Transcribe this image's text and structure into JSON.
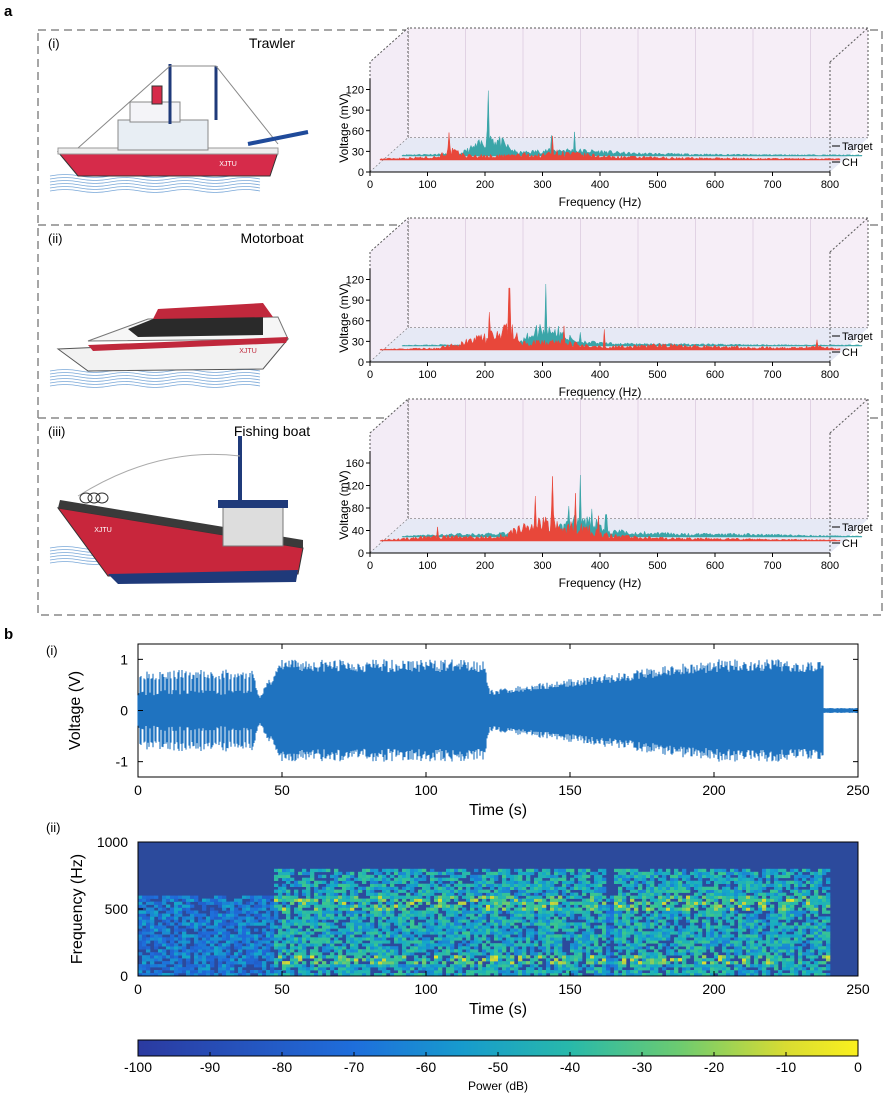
{
  "panel_a": {
    "letter": "a",
    "rows": [
      {
        "tag": "(i)",
        "name": "Trawler",
        "hull_color": "#d62b4a",
        "boat_label": "XJTU",
        "ylabel": "Voltage (mV)",
        "yticks": [
          "0",
          "30",
          "60",
          "90",
          "120"
        ],
        "ymax": 120
      },
      {
        "tag": "(ii)",
        "name": "Motorboat",
        "hull_color": "#c0283c",
        "boat_label": "XJTU",
        "ylabel": "Voltage (mV)",
        "yticks": [
          "0",
          "30",
          "60",
          "90",
          "120"
        ],
        "ymax": 120
      },
      {
        "tag": "(iii)",
        "name": "Fishing boat",
        "hull_color": "#c8263c",
        "boat_label": "XJTU",
        "ylabel": "Voltage (mV)",
        "yticks": [
          "0",
          "40",
          "80",
          "120",
          "160"
        ],
        "ymax": 160
      }
    ],
    "xticks": [
      "0",
      "100",
      "200",
      "300",
      "400",
      "500",
      "600",
      "700",
      "800"
    ],
    "xlabel": "Frequency (Hz)",
    "series_labels": {
      "target": "Target",
      "ch": "CH"
    },
    "colors": {
      "target": "#3aa5a8",
      "ch": "#e8473a"
    }
  },
  "panel_b": {
    "letter": "b",
    "sub_i": "(i)",
    "sub_ii": "(ii)",
    "waveform": {
      "ylabel": "Voltage (V)",
      "yticks": [
        "-1",
        "0",
        "1"
      ],
      "xlabel": "Time (s)",
      "xticks": [
        "0",
        "50",
        "100",
        "150",
        "200",
        "250"
      ],
      "color": "#1f73c0"
    },
    "spectrogram": {
      "ylabel": "Frequency (Hz)",
      "yticks": [
        "0",
        "500",
        "1000"
      ],
      "xlabel": "Time (s)",
      "xticks": [
        "0",
        "50",
        "100",
        "150",
        "200",
        "250"
      ]
    },
    "colorbar": {
      "label": "Power (dB)",
      "ticks": [
        "-100",
        "-90",
        "-80",
        "-70",
        "-60",
        "-50",
        "-40",
        "-30",
        "-20",
        "-10",
        "0"
      ]
    }
  },
  "chart_data": [
    {
      "type": "line",
      "title": "Trawler",
      "xlabel": "Frequency (Hz)",
      "ylabel": "Voltage (mV)",
      "xlim": [
        0,
        800
      ],
      "ylim": [
        0,
        120
      ],
      "series": [
        {
          "name": "Target",
          "x": [
            0,
            100,
            140,
            150,
            200,
            250,
            280,
            300,
            350,
            400,
            500,
            600,
            700,
            800
          ],
          "values": [
            5,
            10,
            60,
            100,
            15,
            25,
            28,
            26,
            20,
            12,
            8,
            6,
            5,
            4
          ]
        },
        {
          "name": "CH",
          "x": [
            0,
            100,
            120,
            150,
            200,
            250,
            280,
            300,
            350,
            400,
            500,
            600,
            700,
            800
          ],
          "values": [
            5,
            15,
            45,
            20,
            18,
            25,
            20,
            35,
            25,
            15,
            10,
            8,
            6,
            5
          ]
        }
      ]
    },
    {
      "type": "line",
      "title": "Motorboat",
      "xlabel": "Frequency (Hz)",
      "ylabel": "Voltage (mV)",
      "xlim": [
        0,
        800
      ],
      "ylim": [
        0,
        120
      ],
      "series": [
        {
          "name": "Target",
          "x": [
            0,
            100,
            150,
            200,
            250,
            300,
            350,
            400,
            500,
            600,
            700,
            800
          ],
          "values": [
            3,
            6,
            10,
            15,
            95,
            25,
            12,
            10,
            8,
            6,
            4,
            4
          ]
        },
        {
          "name": "CH",
          "x": [
            0,
            100,
            190,
            225,
            250,
            300,
            320,
            350,
            400,
            500,
            600,
            700,
            760,
            800
          ],
          "values": [
            3,
            8,
            60,
            95,
            30,
            35,
            40,
            20,
            15,
            22,
            15,
            10,
            15,
            5
          ]
        }
      ]
    },
    {
      "type": "line",
      "title": "Fishing boat",
      "xlabel": "Frequency (Hz)",
      "ylabel": "Voltage (mV)",
      "xlim": [
        0,
        800
      ],
      "ylim": [
        0,
        160
      ],
      "series": [
        {
          "name": "Target",
          "x": [
            0,
            100,
            200,
            280,
            310,
            340,
            350,
            400,
            500,
            600,
            700,
            800
          ],
          "values": [
            4,
            15,
            20,
            60,
            110,
            70,
            40,
            25,
            15,
            15,
            8,
            4
          ]
        },
        {
          "name": "CH",
          "x": [
            0,
            100,
            200,
            270,
            300,
            310,
            340,
            380,
            400,
            500,
            600,
            700,
            800
          ],
          "values": [
            4,
            25,
            20,
            90,
            120,
            80,
            85,
            50,
            30,
            15,
            12,
            8,
            5
          ]
        }
      ]
    },
    {
      "type": "line",
      "xlabel": "Time (s)",
      "ylabel": "Voltage (V)",
      "xlim": [
        0,
        250
      ],
      "ylim": [
        -1.3,
        1.3
      ],
      "series": [
        {
          "name": "",
          "x": [
            0,
            40,
            42,
            50,
            120,
            122,
            200,
            238,
            240,
            250
          ],
          "values": [
            0.8,
            0.8,
            0.3,
            1.0,
            1.0,
            0.4,
            1.0,
            1.0,
            0.05,
            0.02
          ]
        }
      ]
    },
    {
      "type": "heatmap",
      "xlabel": "Time (s)",
      "ylabel": "Frequency (Hz)",
      "xlim": [
        0,
        250
      ],
      "ylim": [
        0,
        1000
      ],
      "colorbar_label": "Power (dB)",
      "color_range": [
        -100,
        0
      ]
    }
  ]
}
